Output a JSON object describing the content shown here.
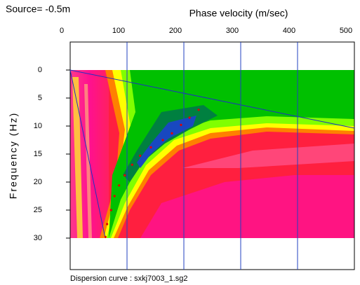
{
  "chart_data": {
    "type": "scatter",
    "annotation": "Source= -0.5m",
    "x_label": "Phase velocity (m/sec)",
    "y_label": "Frequency (Hz)",
    "caption": "Dispersion curve : sxkj7003_1.sg2",
    "x": [
      226,
      210,
      195,
      179,
      163,
      142,
      123,
      109,
      96,
      86,
      78,
      72,
      65,
      62
    ],
    "y": [
      7.1,
      8.5,
      9.8,
      11.3,
      12.5,
      13.8,
      15.3,
      16.9,
      18.8,
      20.6,
      22.5,
      25,
      27.5,
      29.8
    ],
    "color": "#e00000",
    "xlim": [
      0,
      500
    ],
    "xticks": [
      0,
      100,
      200,
      300,
      400,
      500
    ],
    "ylim": [
      30,
      0
    ],
    "yticks": [
      0,
      5,
      10,
      15,
      20,
      25,
      30
    ],
    "grid": true
  }
}
